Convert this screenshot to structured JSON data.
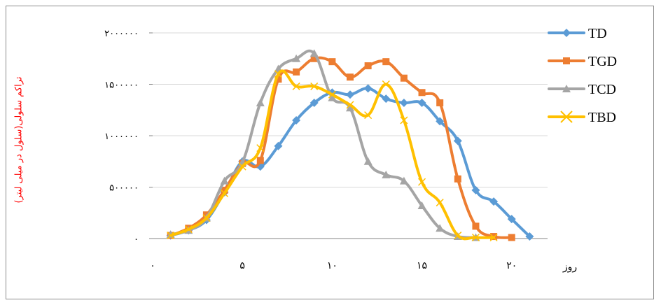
{
  "chart_data": {
    "type": "line",
    "title": "",
    "xlabel": "روز",
    "ylabel": "تراکم سلولی(سلول در میلی لیتر)",
    "xlim": [
      0,
      22
    ],
    "ylim": [
      0,
      2000000
    ],
    "x_ticks": [
      0,
      5,
      10,
      15,
      20
    ],
    "x_tick_labels": [
      "۰",
      "۵",
      "۱۰",
      "۱۵",
      "۲۰"
    ],
    "y_ticks": [
      0,
      500000,
      1000000,
      1500000,
      2000000
    ],
    "y_tick_labels": [
      "۰",
      "۵۰۰۰۰۰",
      "۱۰۰۰۰۰۰",
      "۱۵۰۰۰۰۰",
      "۲۰۰۰۰۰۰"
    ],
    "grid": "horizontal",
    "legend_position": "right",
    "series": [
      {
        "name": "TD",
        "color": "#5b9bd5",
        "marker": "diamond",
        "x": [
          1,
          2,
          3,
          4,
          5,
          6,
          7,
          8,
          9,
          10,
          11,
          12,
          13,
          14,
          15,
          16,
          17,
          18,
          19,
          20,
          21
        ],
        "y": [
          30000,
          80000,
          180000,
          450000,
          750000,
          700000,
          900000,
          1150000,
          1320000,
          1420000,
          1400000,
          1460000,
          1360000,
          1320000,
          1320000,
          1140000,
          950000,
          470000,
          360000,
          190000,
          20000
        ]
      },
      {
        "name": "TGD",
        "color": "#ed7d31",
        "marker": "square",
        "x": [
          1,
          2,
          3,
          4,
          5,
          6,
          7,
          8,
          9,
          10,
          11,
          12,
          13,
          14,
          15,
          16,
          17,
          18,
          19,
          20
        ],
        "y": [
          30000,
          100000,
          230000,
          470000,
          730000,
          760000,
          1550000,
          1620000,
          1750000,
          1720000,
          1570000,
          1680000,
          1720000,
          1560000,
          1420000,
          1320000,
          580000,
          120000,
          20000,
          10000
        ]
      },
      {
        "name": "TCD",
        "color": "#a5a5a5",
        "marker": "triangle",
        "x": [
          1,
          2,
          3,
          4,
          5,
          6,
          7,
          8,
          9,
          10,
          11,
          12,
          13,
          14,
          15,
          16,
          17,
          18
        ],
        "y": [
          40000,
          80000,
          200000,
          560000,
          740000,
          1320000,
          1650000,
          1750000,
          1800000,
          1370000,
          1270000,
          750000,
          620000,
          560000,
          320000,
          100000,
          20000,
          10000
        ]
      },
      {
        "name": "TBD",
        "color": "#ffc000",
        "marker": "x",
        "x": [
          1,
          2,
          3,
          4,
          5,
          6,
          7,
          8,
          9,
          10,
          11,
          12,
          13,
          14,
          15,
          16,
          17,
          18,
          19
        ],
        "y": [
          30000,
          90000,
          200000,
          440000,
          700000,
          880000,
          1600000,
          1480000,
          1480000,
          1400000,
          1300000,
          1200000,
          1500000,
          1150000,
          550000,
          350000,
          30000,
          10000,
          10000
        ]
      }
    ]
  }
}
